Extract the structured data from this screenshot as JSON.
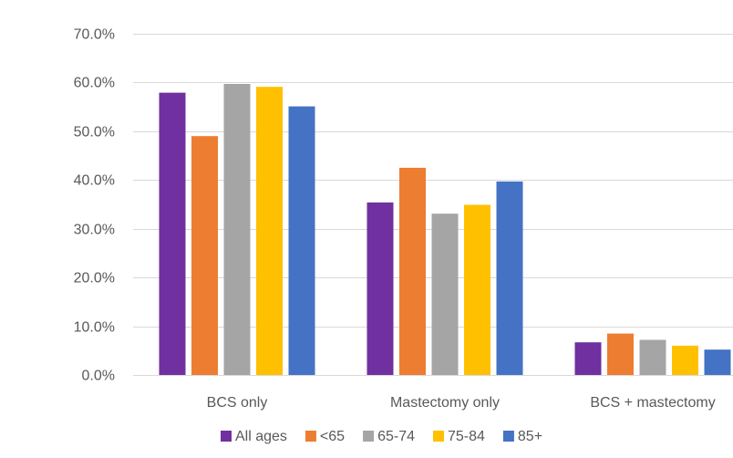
{
  "chart_data": {
    "type": "bar",
    "categories": [
      "BCS only",
      "Mastectomy only",
      "BCS + mastectomy"
    ],
    "series": [
      {
        "name": "All ages",
        "color": "#7030A0",
        "values": [
          57.9,
          35.4,
          6.7
        ]
      },
      {
        "name": "<65",
        "color": "#ED7D31",
        "values": [
          49.0,
          42.5,
          8.5
        ]
      },
      {
        "name": "65-74",
        "color": "#A5A5A5",
        "values": [
          59.7,
          33.1,
          7.2
        ]
      },
      {
        "name": "75-84",
        "color": "#FFC000",
        "values": [
          59.1,
          34.9,
          6.0
        ]
      },
      {
        "name": "85+",
        "color": "#4472C4",
        "values": [
          55.1,
          39.7,
          5.2
        ]
      }
    ],
    "yticks": [
      "0.0%",
      "10.0%",
      "20.0%",
      "30.0%",
      "40.0%",
      "50.0%",
      "60.0%",
      "70.0%"
    ],
    "ylim": [
      0,
      70
    ],
    "grid": true,
    "legend_position": "bottom"
  }
}
